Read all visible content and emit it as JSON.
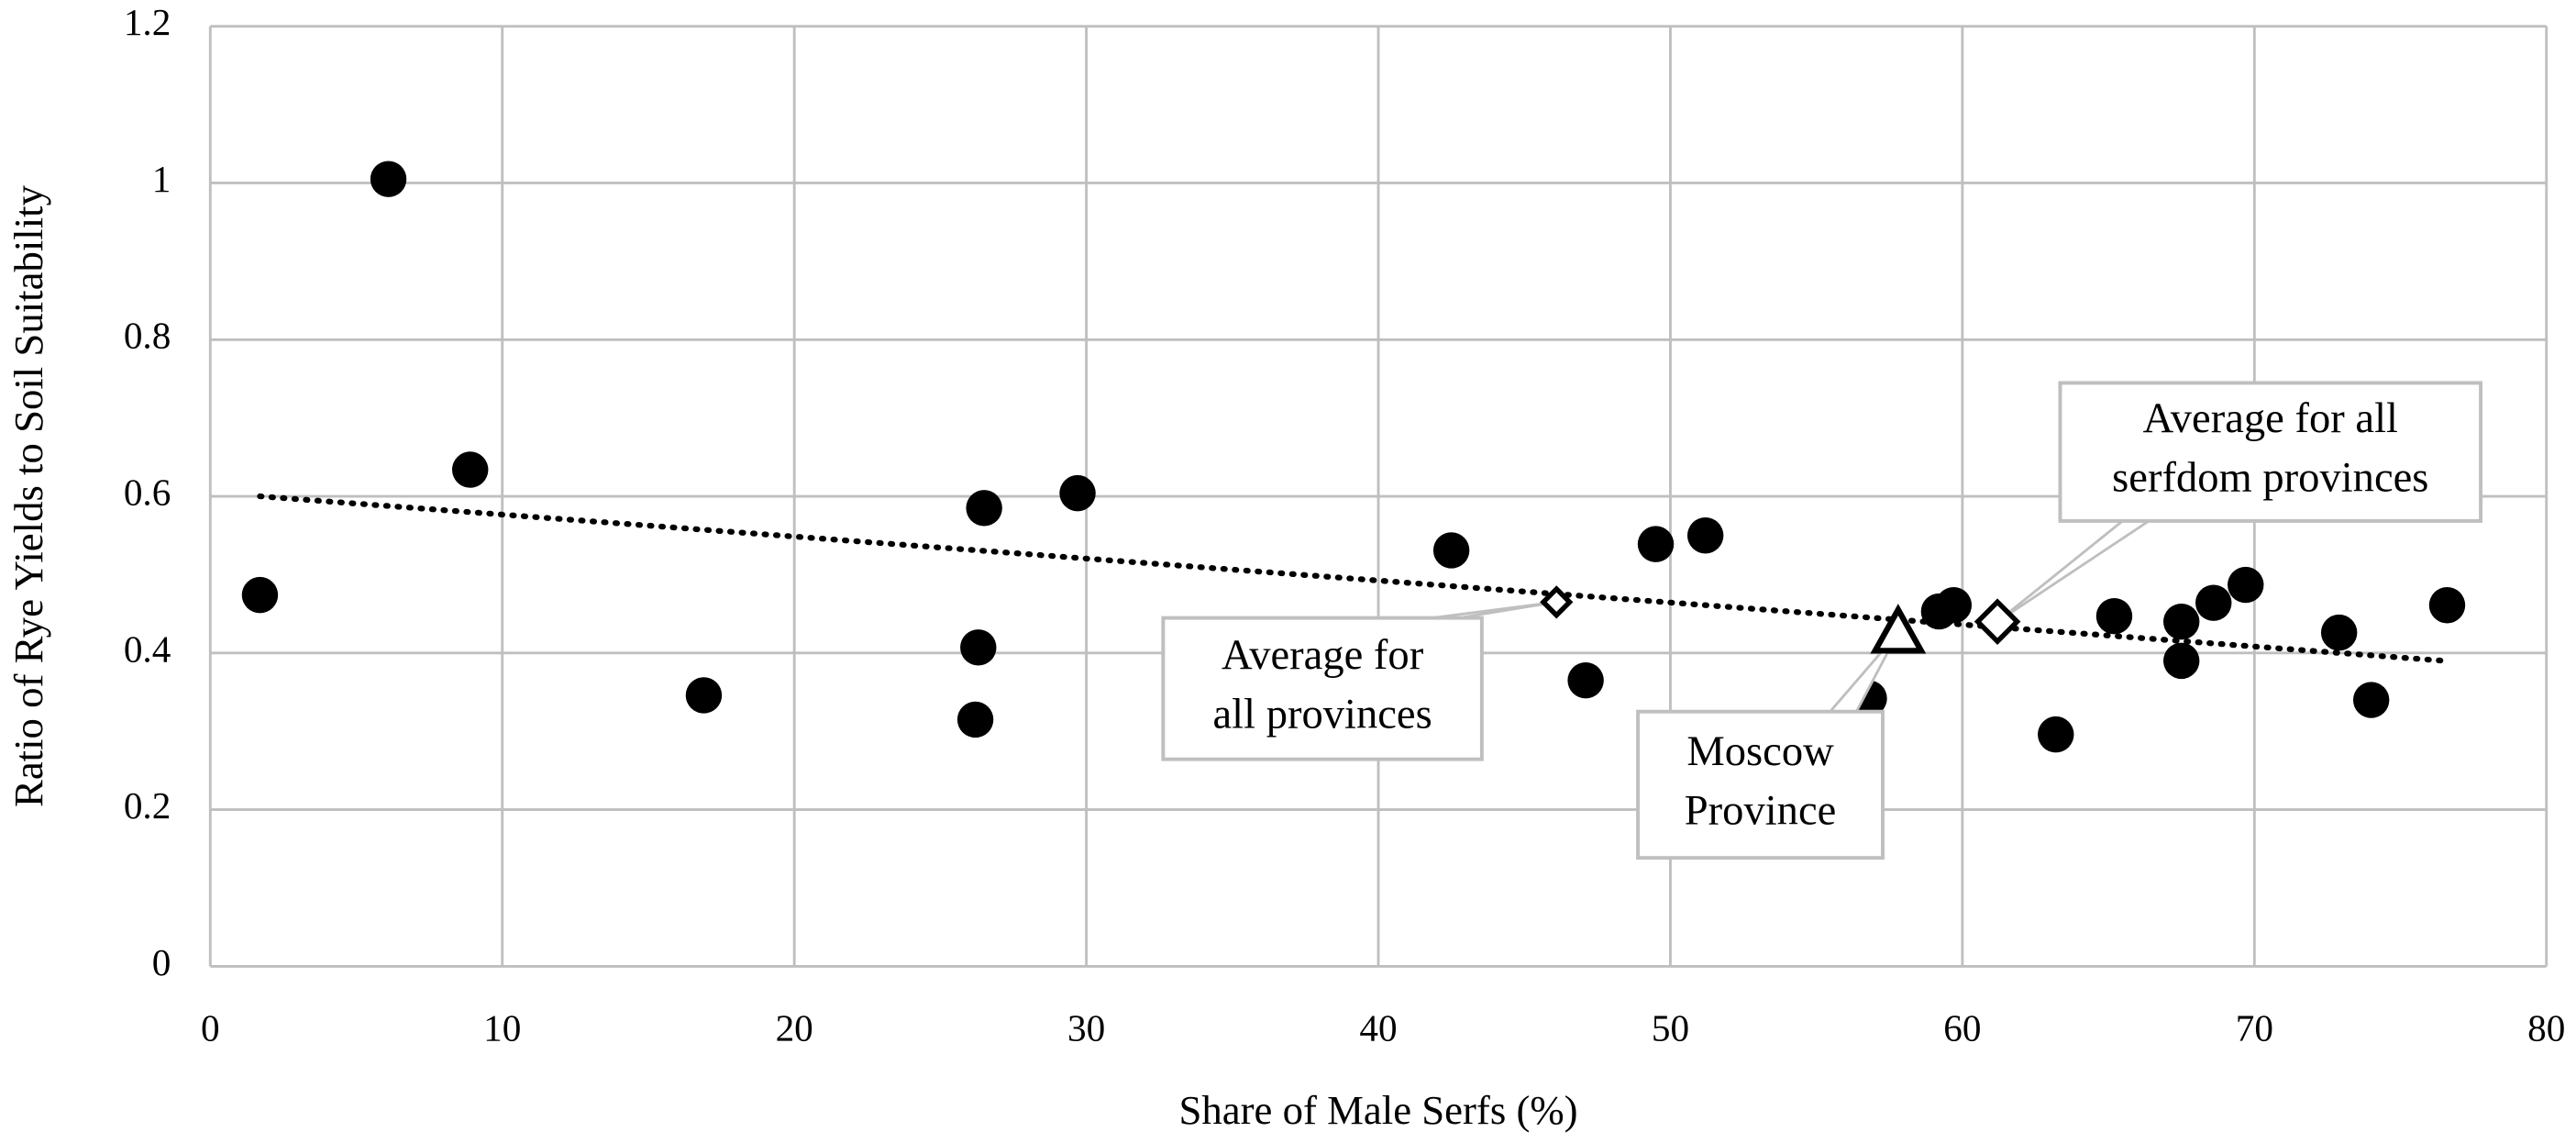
{
  "chart_data": {
    "type": "scatter",
    "xlabel": "Share of Male Serfs (%)",
    "ylabel": "Ratio of Rye Yields to Soil Suitability",
    "xlim": [
      0,
      80
    ],
    "ylim": [
      0,
      1.2
    ],
    "xticks": [
      0,
      10,
      20,
      30,
      40,
      50,
      60,
      70,
      80
    ],
    "yticks": [
      0,
      0.2,
      0.4,
      0.6,
      0.8,
      1,
      1.2
    ],
    "grid": true,
    "color": "#000000",
    "x": [
      1.7,
      6.1,
      8.9,
      16.9,
      26.2,
      26.3,
      26.5,
      29.7,
      42.5,
      47.1,
      49.5,
      51.2,
      56.8,
      59.2,
      59.7,
      63.2,
      65.2,
      67.5,
      67.5,
      68.6,
      69.7,
      72.9,
      74.0,
      76.6
    ],
    "y": [
      0.474,
      1.005,
      0.634,
      0.346,
      0.315,
      0.407,
      0.585,
      0.604,
      0.531,
      0.365,
      0.539,
      0.55,
      0.342,
      0.453,
      0.461,
      0.296,
      0.447,
      0.39,
      0.44,
      0.464,
      0.487,
      0.426,
      0.34,
      0.461
    ],
    "trendline": {
      "x": [
        1.7,
        76.5
      ],
      "y": [
        0.6,
        0.39
      ]
    },
    "annotations": [
      {
        "lines": [
          "Average for",
          "all provinces"
        ],
        "x": 46.1,
        "y": 0.465,
        "marker": "diamond"
      },
      {
        "lines": [
          "Moscow",
          "Province"
        ],
        "x": 57.8,
        "y": 0.426,
        "marker": "triangle"
      },
      {
        "lines": [
          "Average for all",
          "serfdom provinces"
        ],
        "x": 61.2,
        "y": 0.44,
        "marker": "diamond"
      }
    ]
  }
}
